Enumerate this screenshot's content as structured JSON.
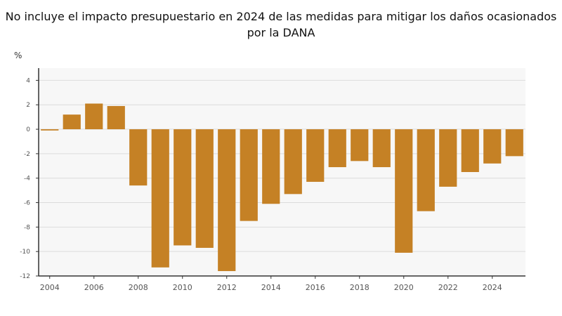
{
  "chart_data": {
    "type": "bar",
    "subtitle": "No incluye el impacto presupuestario en 2024 de las medidas para mitigar los daños ocasionados por la DANA",
    "ylabel": "%",
    "ylim": [
      -12,
      5
    ],
    "yticks": [
      4,
      2,
      0,
      -2,
      -4,
      -6,
      -8,
      -10,
      -12
    ],
    "xticks": [
      2004,
      2006,
      2008,
      2010,
      2012,
      2014,
      2016,
      2018,
      2020,
      2022,
      2024
    ],
    "grid": true,
    "categories": [
      2004,
      2005,
      2006,
      2007,
      2008,
      2009,
      2010,
      2011,
      2012,
      2013,
      2014,
      2015,
      2016,
      2017,
      2018,
      2019,
      2020,
      2021,
      2022,
      2023,
      2024,
      2025
    ],
    "values": [
      -0.1,
      1.2,
      2.1,
      1.9,
      -4.6,
      -11.3,
      -9.5,
      -9.7,
      -11.6,
      -7.5,
      -6.1,
      -5.3,
      -4.3,
      -3.1,
      -2.6,
      -3.1,
      -10.1,
      -6.7,
      -4.7,
      -3.5,
      -2.8,
      -2.2
    ],
    "bar_color": "#c58125"
  }
}
